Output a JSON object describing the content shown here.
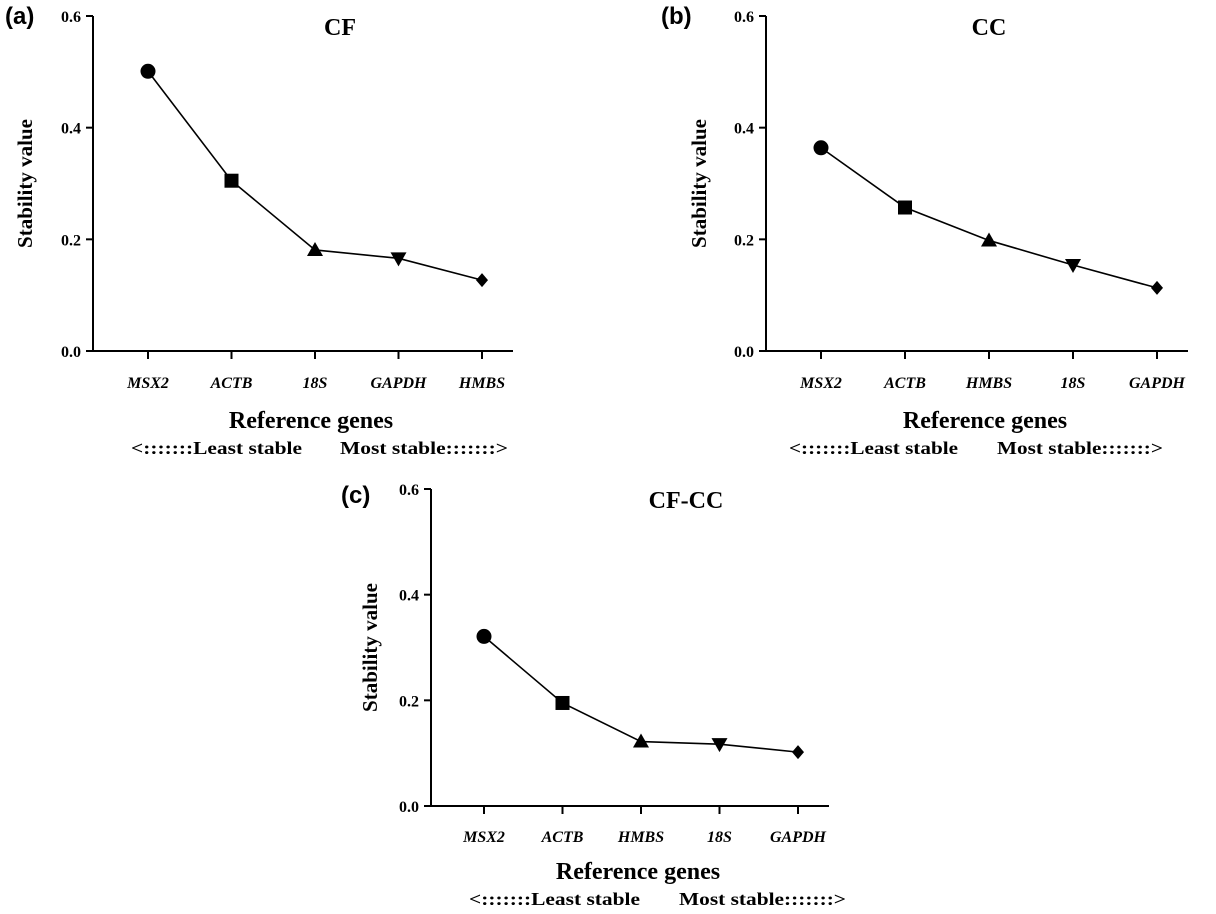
{
  "chart_data": [
    {
      "panel_label": "(a)",
      "type": "line",
      "title": "CF",
      "xlabel": "Reference genes",
      "ylabel": "Stability value",
      "stability_note": {
        "left": "<:::::::Least stable",
        "right": "Most stable:::::::>"
      },
      "categories": [
        "MSX2",
        "ACTB",
        "18S",
        "GAPDH",
        "HMBS"
      ],
      "values": [
        0.501,
        0.305,
        0.181,
        0.166,
        0.127
      ],
      "markers": [
        "circle",
        "square",
        "triangle-up",
        "triangle-down",
        "diamond"
      ],
      "ylim": [
        0,
        0.6
      ],
      "yticks": [
        "0.0",
        "0.2",
        "0.4",
        "0.6"
      ]
    },
    {
      "panel_label": "(b)",
      "type": "line",
      "title": "CC",
      "xlabel": "Reference genes",
      "ylabel": "Stability value",
      "stability_note": {
        "left": "<:::::::Least stable",
        "right": "Most stable:::::::>"
      },
      "categories": [
        "MSX2",
        "ACTB",
        "HMBS",
        "18S",
        "GAPDH"
      ],
      "values": [
        0.364,
        0.257,
        0.198,
        0.154,
        0.113
      ],
      "markers": [
        "circle",
        "square",
        "triangle-up",
        "triangle-down",
        "diamond"
      ],
      "ylim": [
        0,
        0.6
      ],
      "yticks": [
        "0.0",
        "0.2",
        "0.4",
        "0.6"
      ]
    },
    {
      "panel_label": "(c)",
      "type": "line",
      "title": "CF-CC",
      "xlabel": "Reference genes",
      "ylabel": "Stability value",
      "stability_note": {
        "left": "<:::::::Least stable",
        "right": "Most stable:::::::>"
      },
      "categories": [
        "MSX2",
        "ACTB",
        "HMBS",
        "18S",
        "GAPDH"
      ],
      "values": [
        0.321,
        0.195,
        0.122,
        0.117,
        0.102
      ],
      "markers": [
        "circle",
        "square",
        "triangle-up",
        "triangle-down",
        "diamond"
      ],
      "ylim": [
        0,
        0.6
      ],
      "yticks": [
        "0.0",
        "0.2",
        "0.4",
        "0.6"
      ]
    }
  ]
}
